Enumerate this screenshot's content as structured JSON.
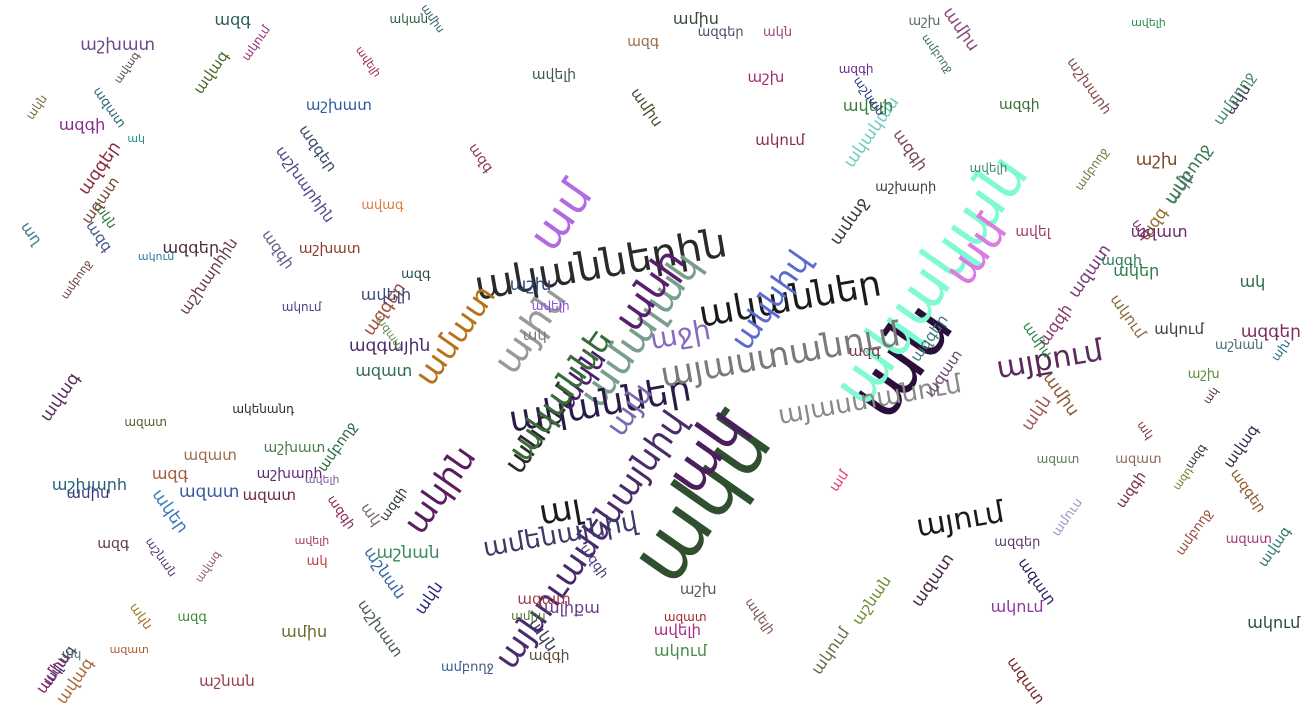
{
  "words": [
    {
      "text": "ակմ",
      "color": "#2f4f2f"
    },
    {
      "text": "ան",
      "color": "#2a0f3a"
    },
    {
      "text": "ակական",
      "color": "#7ffad4"
    },
    {
      "text": "ամ",
      "color": "#d97be0"
    },
    {
      "text": "ակ",
      "color": "#4b1e5e"
    },
    {
      "text": "ականներ",
      "color": "#1a1a1a"
    },
    {
      "text": "ականներին",
      "color": "#2a2a2a"
    },
    {
      "text": "ամալակ",
      "color": "#7a9e8e"
    },
    {
      "text": "անի",
      "color": "#5a1e6e"
    },
    {
      "text": "ամ",
      "color": "#b06be0"
    },
    {
      "text": "ականներ",
      "color": "#2a1a4a"
    },
    {
      "text": "ամատ",
      "color": "#b8731a"
    },
    {
      "text": "ային",
      "color": "#9a9a9a"
    },
    {
      "text": "այն",
      "color": "#7a6ab0"
    },
    {
      "text": "աջի",
      "color": "#8a6ac0"
    },
    {
      "text": "ակն",
      "color": "#4a1e6e"
    },
    {
      "text": "ակնիվ",
      "color": "#5a6ad0"
    },
    {
      "text": "այաստանում",
      "color": "#7a7a7a"
    },
    {
      "text": "անում",
      "color": "#2a2a2a"
    },
    {
      "text": "ականնե",
      "color": "#3a6a3a"
    },
    {
      "text": "այաստանում",
      "color": "#8a8a8a"
    },
    {
      "text": "ակին",
      "color": "#5a1e5e"
    },
    {
      "text": "ալ",
      "color": "#1a1a1a"
    },
    {
      "text": "այնուամենայնիվ",
      "color": "#4a2a6a"
    },
    {
      "text": "ամենայնիվ",
      "color": "#3a3a6a"
    },
    {
      "text": "այքում",
      "color": "#5a2a5a"
    },
    {
      "text": "այում",
      "color": "#1a1a1a"
    },
    {
      "text": "ամաջ",
      "color": "#3a3a3a"
    },
    {
      "text": "ակական",
      "color": "#6ad0c0"
    },
    {
      "text": "ամուս",
      "color": "#9a9ac0"
    },
    {
      "text": "ակենանդ",
      "color": "#2a2a2a"
    },
    {
      "text": "ակում",
      "color": "#8a3aa0"
    },
    {
      "text": "ակեր",
      "color": "#3a7ac0"
    },
    {
      "text": "ավելի",
      "color": "#8a4ae0"
    },
    {
      "text": "ակեր",
      "color": "#2a7a4a"
    },
    {
      "text": "ալիքա",
      "color": "#6a3a8a"
    },
    {
      "text": "աշխ",
      "color": "#5a5a5a"
    },
    {
      "text": "աշխ",
      "color": "#aa2a6a"
    },
    {
      "text": "աշխարի",
      "color": "#3a3a3a"
    },
    {
      "text": "ազգի",
      "color": "#5a4a3a"
    },
    {
      "text": "աշխատ",
      "color": "#2a5aa0"
    },
    {
      "text": "ավագ",
      "color": "#e07a3a"
    },
    {
      "text": "ամիս",
      "color": "#2a8a4a"
    },
    {
      "text": "ազգի",
      "color": "#7a2a3a"
    },
    {
      "text": "ազգային",
      "color": "#4a2a6a"
    },
    {
      "text": "ավելի",
      "color": "#aa2a8a"
    },
    {
      "text": "ազգ",
      "color": "#3a3a3a"
    },
    {
      "text": "ախ",
      "color": "#2a6a8a"
    },
    {
      "text": "աշնան",
      "color": "#6a8a2a"
    },
    {
      "text": "ազատ",
      "color": "#aa5a2a"
    },
    {
      "text": "ազգի",
      "color": "#4a3a7a"
    },
    {
      "text": "ակ",
      "color": "#c03a3a"
    },
    {
      "text": "աղ",
      "color": "#3a7a8a"
    },
    {
      "text": "ազատ",
      "color": "#7a2a2a"
    },
    {
      "text": "ական",
      "color": "#2a5a3a"
    },
    {
      "text": "ամ",
      "color": "#e03a7a"
    },
    {
      "text": "ազդ",
      "color": "#7a7a2a"
    },
    {
      "text": "աշխարհ",
      "color": "#5a2a7a"
    },
    {
      "text": "ակում",
      "color": "#2a7aa0"
    },
    {
      "text": "ազգեր",
      "color": "#8a5a2a"
    },
    {
      "text": "ավել",
      "color": "#a03a6a"
    },
    {
      "text": "ազգ",
      "color": "#3a8a3a"
    },
    {
      "text": "ամբողջ",
      "color": "#6a3a3a"
    },
    {
      "text": "ազատ",
      "color": "#3a5aa0"
    },
    {
      "text": "ակն",
      "color": "#a07a2a"
    },
    {
      "text": "աշխարհին",
      "color": "#4a4a8a"
    },
    {
      "text": "ազգի",
      "color": "#8a2a5a"
    },
    {
      "text": "ազատ",
      "color": "#2a6a5a"
    },
    {
      "text": "ավելի",
      "color": "#7a5aa0"
    },
    {
      "text": "ակում",
      "color": "#3a3a3a"
    },
    {
      "text": "ազգեր",
      "color": "#a04a3a"
    },
    {
      "text": "ամիս",
      "color": "#4a7a2a"
    },
    {
      "text": "աշխ",
      "color": "#2a4a7a"
    },
    {
      "text": "ազատ",
      "color": "#7a3a7a"
    },
    {
      "text": "ավագ",
      "color": "#2a7a6a"
    },
    {
      "text": "ազգ",
      "color": "#9a6a2a"
    },
    {
      "text": "ակ",
      "color": "#5a2a3a"
    },
    {
      "text": "աշնան",
      "color": "#3a6aa0"
    },
    {
      "text": "ազատ",
      "color": "#a02a2a"
    },
    {
      "text": "ամիս",
      "color": "#6a6a2a"
    },
    {
      "text": "ակն",
      "color": "#2a2a7a"
    },
    {
      "text": "ազգի",
      "color": "#7a4a5a"
    },
    {
      "text": "ավելի",
      "color": "#3a8a6a"
    },
    {
      "text": "աշխատ",
      "color": "#8a3a2a"
    },
    {
      "text": "ազգ",
      "color": "#4a5a8a"
    },
    {
      "text": "ակում",
      "color": "#9a2a7a"
    },
    {
      "text": "ամբողջ",
      "color": "#2a6a3a"
    },
    {
      "text": "ազատ",
      "color": "#6a2a6a"
    },
    {
      "text": "ավագ",
      "color": "#aa6a3a"
    },
    {
      "text": "ազգեր",
      "color": "#3a4a6a"
    },
    {
      "text": "ակ",
      "color": "#7a7a7a"
    },
    {
      "text": "աշխ",
      "color": "#5a8a3a"
    },
    {
      "text": "ազգի",
      "color": "#8a2a8a"
    },
    {
      "text": "ամիս",
      "color": "#2a5a6a"
    },
    {
      "text": "ակն",
      "color": "#a05a5a"
    },
    {
      "text": "ազատ",
      "color": "#4a2a4a"
    },
    {
      "text": "ավելի",
      "color": "#3a7a3a"
    },
    {
      "text": "ազգ",
      "color": "#7a3a4a"
    },
    {
      "text": "աշնան",
      "color": "#2a3a8a"
    },
    {
      "text": "ակում",
      "color": "#8a6a3a"
    },
    {
      "text": "ազգեր",
      "color": "#5a3a6a"
    },
    {
      "text": "ամբողջ",
      "color": "#3a6a5a"
    },
    {
      "text": "ազատ",
      "color": "#a03a4a"
    },
    {
      "text": "ավագ",
      "color": "#4a6a2a"
    },
    {
      "text": "ազգի",
      "color": "#6a2a8a"
    },
    {
      "text": "ակ",
      "color": "#2a8a8a"
    },
    {
      "text": "աշխարհ",
      "color": "#8a4a4a"
    },
    {
      "text": "ամիս",
      "color": "#3a3a7a"
    },
    {
      "text": "ակն",
      "color": "#7a6a3a"
    },
    {
      "text": "ազատ",
      "color": "#5a7a5a"
    },
    {
      "text": "ավելի",
      "color": "#9a3a5a"
    },
    {
      "text": "ազգ",
      "color": "#2a4a4a"
    },
    {
      "text": "աշխատ",
      "color": "#6a4a8a"
    },
    {
      "text": "ակում",
      "color": "#4a8a4a"
    },
    {
      "text": "ազգեր",
      "color": "#8a2a3a"
    },
    {
      "text": "ամբողջ",
      "color": "#3a5a8a"
    },
    {
      "text": "ազատ",
      "color": "#a06a4a"
    },
    {
      "text": "ավագ",
      "color": "#5a2a5a"
    },
    {
      "text": "ազգի",
      "color": "#2a7a5a"
    },
    {
      "text": "ակ",
      "color": "#7a2a6a"
    },
    {
      "text": "աշնան",
      "color": "#4a6a7a"
    },
    {
      "text": "ամիս",
      "color": "#8a5a3a"
    },
    {
      "text": "ակն",
      "color": "#3a2a5a"
    },
    {
      "text": "ազատ",
      "color": "#6a8a4a"
    },
    {
      "text": "ավելի",
      "color": "#a02a5a"
    },
    {
      "text": "ազգ",
      "color": "#2a5a5a"
    },
    {
      "text": "աշխ",
      "color": "#7a4a2a"
    },
    {
      "text": "ակում",
      "color": "#4a3a8a"
    },
    {
      "text": "ազգեր",
      "color": "#3a7a7a"
    },
    {
      "text": "ամբողջ",
      "color": "#9a4a3a"
    },
    {
      "text": "ազատ",
      "color": "#5a5a2a"
    },
    {
      "text": "ավագ",
      "color": "#2a3a6a"
    },
    {
      "text": "ազգի",
      "color": "#8a3a6a"
    },
    {
      "text": "ակ",
      "color": "#4a7a6a"
    },
    {
      "text": "աշխարհին",
      "color": "#6a3a4a"
    },
    {
      "text": "ամիս",
      "color": "#3a4a3a"
    },
    {
      "text": "ակն",
      "color": "#a04a7a"
    },
    {
      "text": "ազատ",
      "color": "#2a6a7a"
    },
    {
      "text": "ավելի",
      "color": "#7a5a4a"
    },
    {
      "text": "ազգ",
      "color": "#5a3a3a"
    },
    {
      "text": "աշնան",
      "color": "#3a8a5a"
    },
    {
      "text": "ակում",
      "color": "#8a2a4a"
    },
    {
      "text": "ազգեր",
      "color": "#4a4a6a"
    },
    {
      "text": "ամբողջ",
      "color": "#6a7a3a"
    },
    {
      "text": "ազատ",
      "color": "#2a2a5a"
    },
    {
      "text": "ավագ",
      "color": "#9a5a6a"
    },
    {
      "text": "ազգի",
      "color": "#3a6a3a"
    },
    {
      "text": "ակ",
      "color": "#7a3a3a"
    },
    {
      "text": "աշխատ",
      "color": "#4a5a5a"
    },
    {
      "text": "ամիս",
      "color": "#8a4a7a"
    },
    {
      "text": "ակն",
      "color": "#2a7a3a"
    },
    {
      "text": "ազատ",
      "color": "#6a2a4a"
    },
    {
      "text": "ավելի",
      "color": "#3a4a7a"
    },
    {
      "text": "ազգ",
      "color": "#a05a3a"
    },
    {
      "text": "աշխ",
      "color": "#5a6a6a"
    },
    {
      "text": "ակում",
      "color": "#2a4a3a"
    },
    {
      "text": "ազգեր",
      "color": "#7a2a5a"
    },
    {
      "text": "ամբողջ",
      "color": "#4a8a6a"
    },
    {
      "text": "ազատ",
      "color": "#8a6a5a"
    },
    {
      "text": "ավագ",
      "color": "#3a2a4a"
    },
    {
      "text": "ազգի",
      "color": "#6a5a8a"
    },
    {
      "text": "ակ",
      "color": "#2a6a4a"
    },
    {
      "text": "աշնան",
      "color": "#9a3a4a"
    },
    {
      "text": "ամիս",
      "color": "#4a4a2a"
    },
    {
      "text": "ակն",
      "color": "#5a7a8a"
    },
    {
      "text": "ազատ",
      "color": "#7a4a3a"
    },
    {
      "text": "ավելի",
      "color": "#3a5a4a"
    },
    {
      "text": "ազգ",
      "color": "#8a3a5a"
    },
    {
      "text": "աշխարհ",
      "color": "#2a5a7a"
    },
    {
      "text": "ակում",
      "color": "#6a6a4a"
    },
    {
      "text": "ազգեր",
      "color": "#4a2a3a"
    },
    {
      "text": "ամբողջ",
      "color": "#3a7a4a"
    },
    {
      "text": "ազատ",
      "color": "#a03a7a"
    },
    {
      "text": "ավագ",
      "color": "#5a4a4a"
    },
    {
      "text": "ազգի",
      "color": "#2a3a3a"
    },
    {
      "text": "ակ",
      "color": "#7a6a6a"
    },
    {
      "text": "աշխատ",
      "color": "#4a7a4a"
    },
    {
      "text": "ամիս",
      "color": "#8a2a6a"
    },
    {
      "text": "ակն",
      "color": "#3a3a5a"
    },
    {
      "text": "ազատ",
      "color": "#6a4a6a"
    },
    {
      "text": "ավելի",
      "color": "#2a8a4a"
    },
    {
      "text": "ազգ",
      "color": "#9a6a4a"
    },
    {
      "text": "աշնան",
      "color": "#5a3a7a"
    }
  ]
}
